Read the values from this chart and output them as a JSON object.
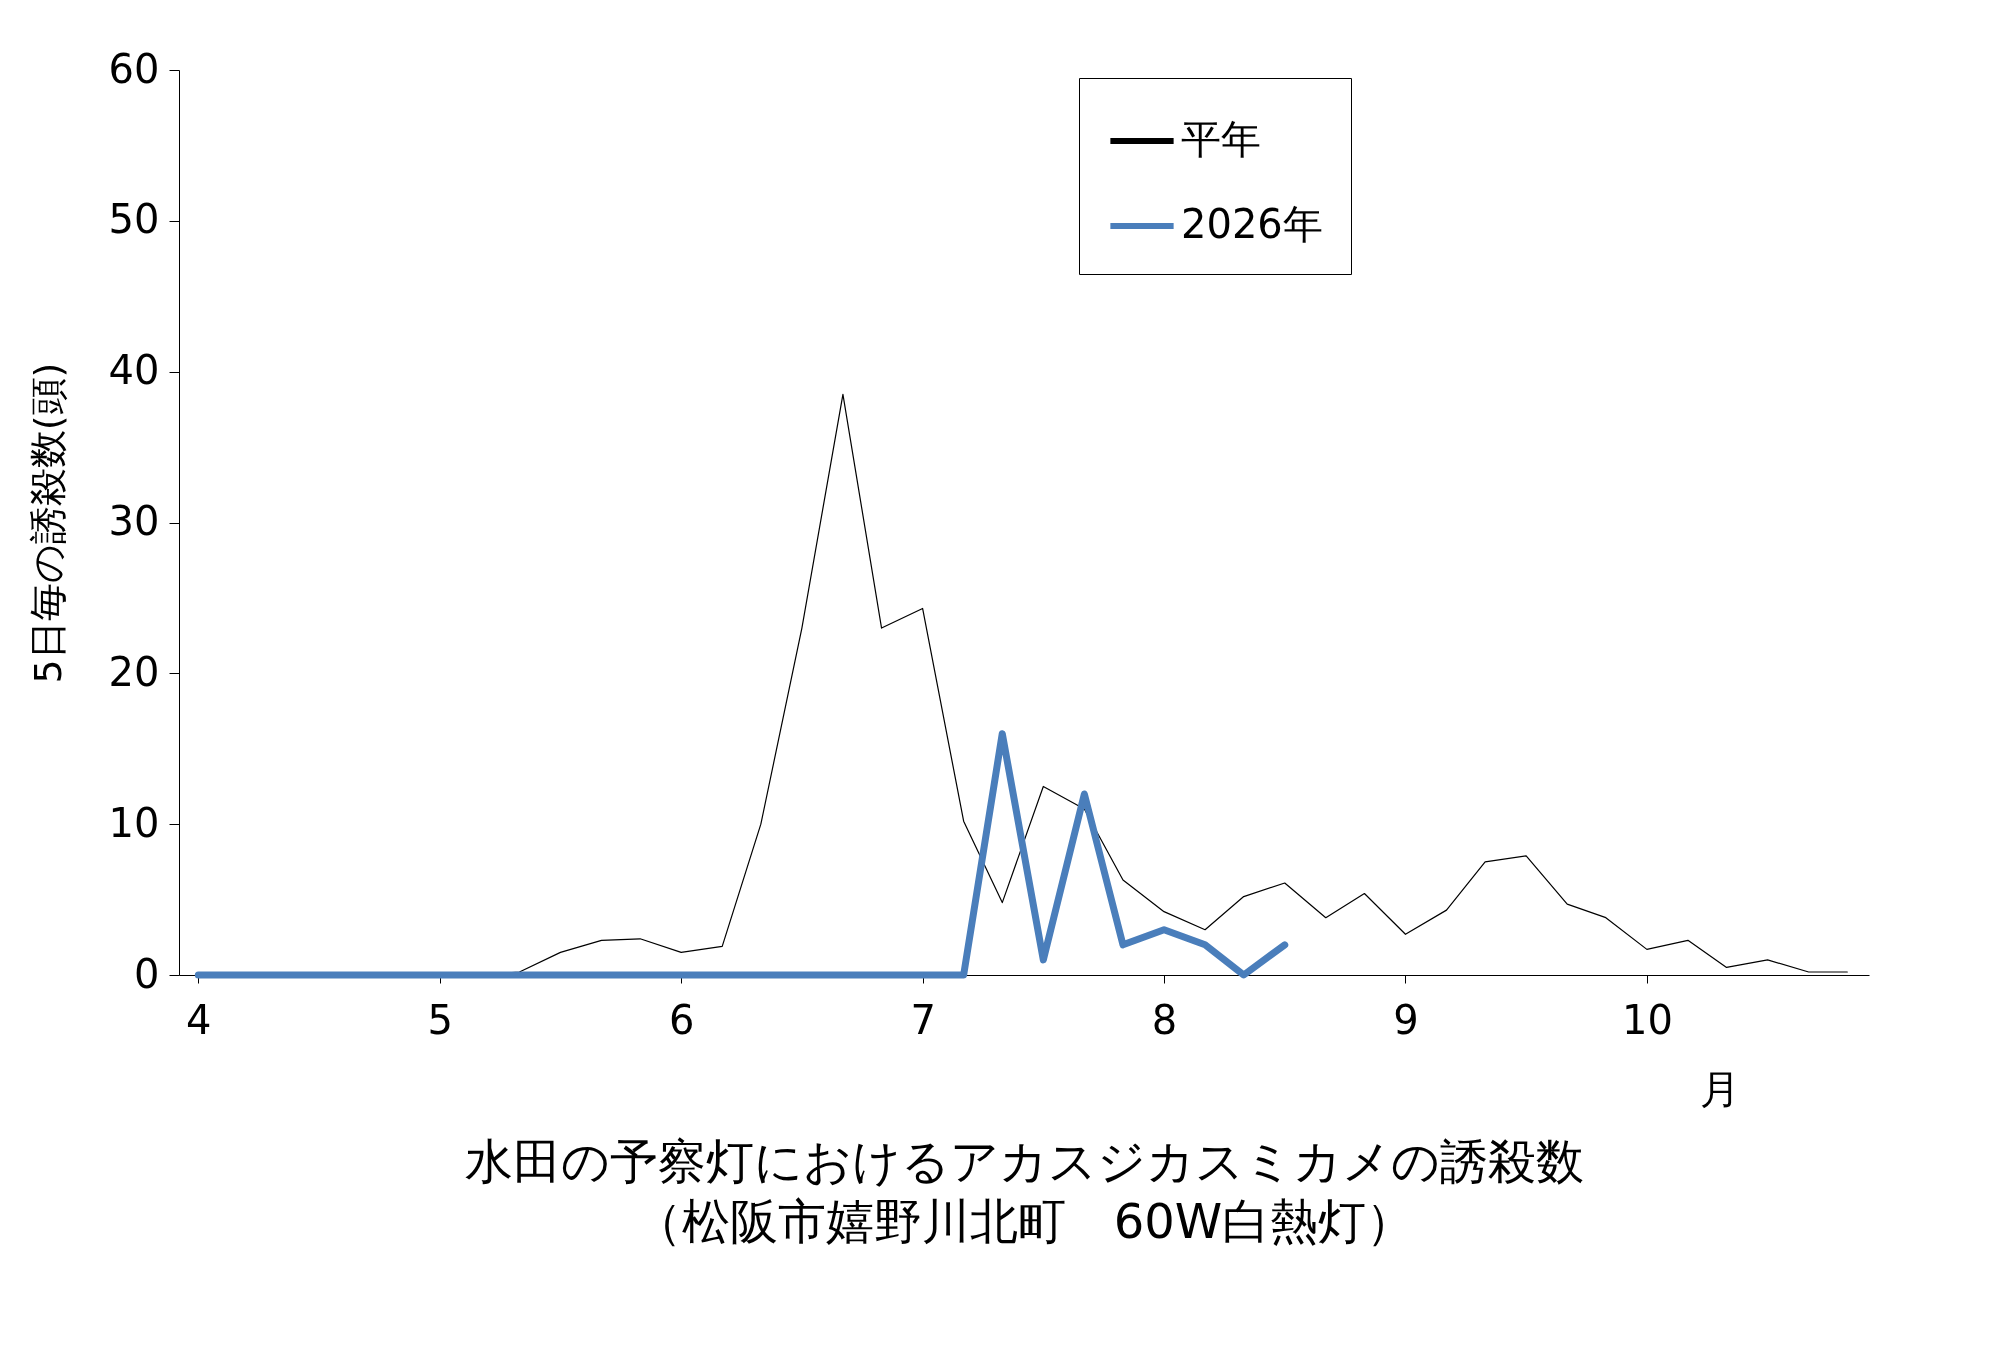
{
  "chart_data": {
    "type": "line",
    "title": "水田の予察灯におけるアカスジカスミカメの誘殺数",
    "subtitle": "（松阪市嬉野川北町　60W白熱灯）",
    "xlabel": "月",
    "ylabel": "5日毎の誘殺数(頭)",
    "x": [
      4,
      4.17,
      4.33,
      4.5,
      4.67,
      4.83,
      5,
      5.17,
      5.33,
      5.5,
      5.67,
      5.83,
      6,
      6.17,
      6.33,
      6.5,
      6.67,
      6.83,
      7,
      7.17,
      7.33,
      7.5,
      7.67,
      7.83,
      8,
      8.17,
      8.33,
      8.5,
      8.67,
      8.83,
      9,
      9.17,
      9.33,
      9.5,
      9.67,
      9.83,
      10,
      10.17,
      10.33,
      10.5,
      10.67,
      10.83
    ],
    "series": [
      {
        "name": "平年",
        "color": "#000000",
        "values": [
          null,
          null,
          null,
          null,
          null,
          null,
          null,
          0,
          0.2,
          1.5,
          2.3,
          2.4,
          1.5,
          1.9,
          10,
          23,
          38.5,
          23,
          24.3,
          10.2,
          4.8,
          12.5,
          11,
          6.3,
          4.2,
          3,
          5.2,
          6.1,
          3.8,
          5.4,
          2.7,
          4.3,
          7.5,
          7.9,
          4.7,
          3.8,
          1.7,
          2.3,
          0.5,
          1,
          0.2,
          0.2
        ]
      },
      {
        "name": "2026年",
        "color": "#4a7ebb",
        "values": [
          0,
          0,
          0,
          0,
          0,
          0,
          0,
          0,
          0,
          0,
          0,
          0,
          0,
          0,
          0,
          0,
          0,
          0,
          0,
          0,
          16,
          1,
          12,
          2,
          3,
          2,
          0,
          2,
          null,
          null,
          null,
          null,
          null,
          null,
          null,
          null,
          null,
          null,
          null,
          null,
          null,
          null
        ]
      }
    ],
    "xlim": [
      3.92,
      10.92
    ],
    "xticks": [
      4,
      5,
      6,
      7,
      8,
      9,
      10
    ],
    "ylim": [
      0,
      60
    ],
    "yticks": [
      0,
      10,
      20,
      30,
      40,
      50,
      60
    ],
    "grid": false,
    "legend": "top right",
    "marker": "none",
    "line_style": "solid"
  }
}
